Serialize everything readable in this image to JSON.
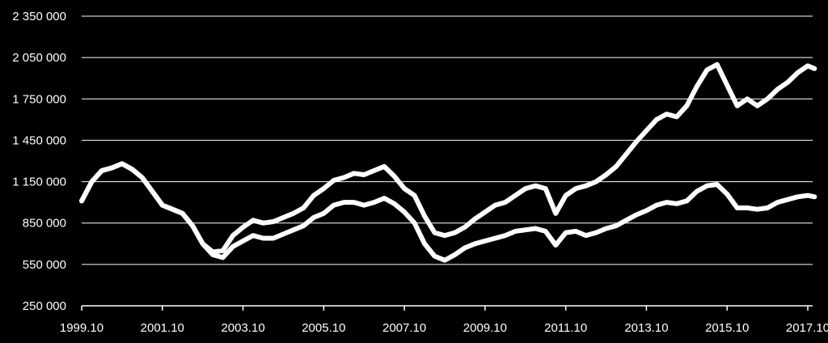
{
  "colors": {
    "background": "#000000",
    "series": "#ffffff",
    "gridline": "#ffffff",
    "axis": "#ffffff",
    "text": "#ffffff"
  },
  "chart_data": {
    "type": "line",
    "title": "",
    "xlabel": "",
    "ylabel": "",
    "grid": "horizontal",
    "legend": "none",
    "ylim": [
      250000,
      2350000
    ],
    "xlim": [
      "1999-10",
      "2017-10"
    ],
    "y_ticks": [
      250000,
      550000,
      850000,
      1150000,
      1450000,
      1750000,
      2050000,
      2350000
    ],
    "y_tick_labels": [
      "250 000",
      "550 000",
      "850 000",
      "1 150 000",
      "1 450 000",
      "1 750 000",
      "2 050 000",
      "2 350 000"
    ],
    "x_ticks": [
      "1999-10",
      "2001-10",
      "2003-10",
      "2005-10",
      "2007-10",
      "2009-10",
      "2011-10",
      "2013-10",
      "2015-10",
      "2017-10"
    ],
    "x_tick_labels": [
      "1999.10",
      "2001.10",
      "2003.10",
      "2005.10",
      "2007.10",
      "2009.10",
      "2011.10",
      "2013.10",
      "2015.10",
      "2017.10"
    ],
    "series": [
      {
        "x": [
          "1999-10",
          "2000-01",
          "2000-04",
          "2000-07",
          "2000-10",
          "2001-01",
          "2001-04",
          "2001-07",
          "2001-10",
          "2002-01",
          "2002-04",
          "2002-07",
          "2002-10",
          "2003-01",
          "2003-04",
          "2003-07",
          "2003-10",
          "2004-01",
          "2004-04",
          "2004-07",
          "2004-10",
          "2005-01",
          "2005-04",
          "2005-07",
          "2005-10",
          "2006-01",
          "2006-04",
          "2006-07",
          "2006-10",
          "2007-01",
          "2007-04",
          "2007-07",
          "2007-10",
          "2008-01",
          "2008-04",
          "2008-07",
          "2008-10",
          "2009-01",
          "2009-04",
          "2009-07",
          "2009-10",
          "2010-01",
          "2010-04",
          "2010-07",
          "2010-10",
          "2011-01",
          "2011-04",
          "2011-07",
          "2011-10",
          "2012-01",
          "2012-04",
          "2012-07",
          "2012-10",
          "2013-01",
          "2013-04",
          "2013-07",
          "2013-10",
          "2014-01",
          "2014-04",
          "2014-07",
          "2014-10",
          "2015-01",
          "2015-04",
          "2015-07",
          "2015-10",
          "2016-01",
          "2016-04",
          "2016-07",
          "2016-10",
          "2017-01",
          "2017-04",
          "2017-07",
          "2017-10",
          "2017-12"
        ],
        "values": [
          1010000,
          1150000,
          1230000,
          1250000,
          1280000,
          1240000,
          1180000,
          1080000,
          980000,
          950000,
          920000,
          830000,
          700000,
          640000,
          650000,
          760000,
          820000,
          870000,
          850000,
          860000,
          890000,
          920000,
          960000,
          1050000,
          1100000,
          1160000,
          1180000,
          1210000,
          1200000,
          1230000,
          1260000,
          1190000,
          1100000,
          1050000,
          900000,
          780000,
          760000,
          780000,
          820000,
          880000,
          930000,
          980000,
          1000000,
          1050000,
          1100000,
          1120000,
          1100000,
          920000,
          1050000,
          1100000,
          1120000,
          1150000,
          1200000,
          1260000,
          1350000,
          1440000,
          1520000,
          1600000,
          1640000,
          1620000,
          1700000,
          1840000,
          1960000,
          2000000,
          1850000,
          1700000,
          1750000,
          1700000,
          1750000,
          1820000,
          1870000,
          1940000,
          1990000,
          1970000
        ]
      },
      {
        "x": [
          "1999-10",
          "2000-01",
          "2000-04",
          "2000-07",
          "2000-10",
          "2001-01",
          "2001-04",
          "2001-07",
          "2001-10",
          "2002-01",
          "2002-04",
          "2002-07",
          "2002-10",
          "2003-01",
          "2003-04",
          "2003-07",
          "2003-10",
          "2004-01",
          "2004-04",
          "2004-07",
          "2004-10",
          "2005-01",
          "2005-04",
          "2005-07",
          "2005-10",
          "2006-01",
          "2006-04",
          "2006-07",
          "2006-10",
          "2007-01",
          "2007-04",
          "2007-07",
          "2007-10",
          "2008-01",
          "2008-04",
          "2008-07",
          "2008-10",
          "2009-01",
          "2009-04",
          "2009-07",
          "2009-10",
          "2010-01",
          "2010-04",
          "2010-07",
          "2010-10",
          "2011-01",
          "2011-04",
          "2011-07",
          "2011-10",
          "2012-01",
          "2012-04",
          "2012-07",
          "2012-10",
          "2013-01",
          "2013-04",
          "2013-07",
          "2013-10",
          "2014-01",
          "2014-04",
          "2014-07",
          "2014-10",
          "2015-01",
          "2015-04",
          "2015-07",
          "2015-10",
          "2016-01",
          "2016-04",
          "2016-07",
          "2016-10",
          "2017-01",
          "2017-04",
          "2017-07",
          "2017-10",
          "2017-12"
        ],
        "values": [
          1010000,
          1150000,
          1230000,
          1250000,
          1280000,
          1240000,
          1180000,
          1080000,
          980000,
          950000,
          920000,
          830000,
          700000,
          620000,
          600000,
          680000,
          720000,
          760000,
          740000,
          740000,
          770000,
          800000,
          830000,
          890000,
          920000,
          980000,
          1000000,
          1000000,
          980000,
          1000000,
          1030000,
          990000,
          930000,
          850000,
          700000,
          610000,
          580000,
          620000,
          670000,
          700000,
          720000,
          740000,
          760000,
          790000,
          800000,
          810000,
          790000,
          690000,
          780000,
          790000,
          760000,
          780000,
          810000,
          830000,
          870000,
          910000,
          940000,
          980000,
          1000000,
          990000,
          1010000,
          1080000,
          1120000,
          1130000,
          1060000,
          960000,
          960000,
          950000,
          960000,
          1000000,
          1020000,
          1040000,
          1050000,
          1040000
        ]
      }
    ]
  }
}
